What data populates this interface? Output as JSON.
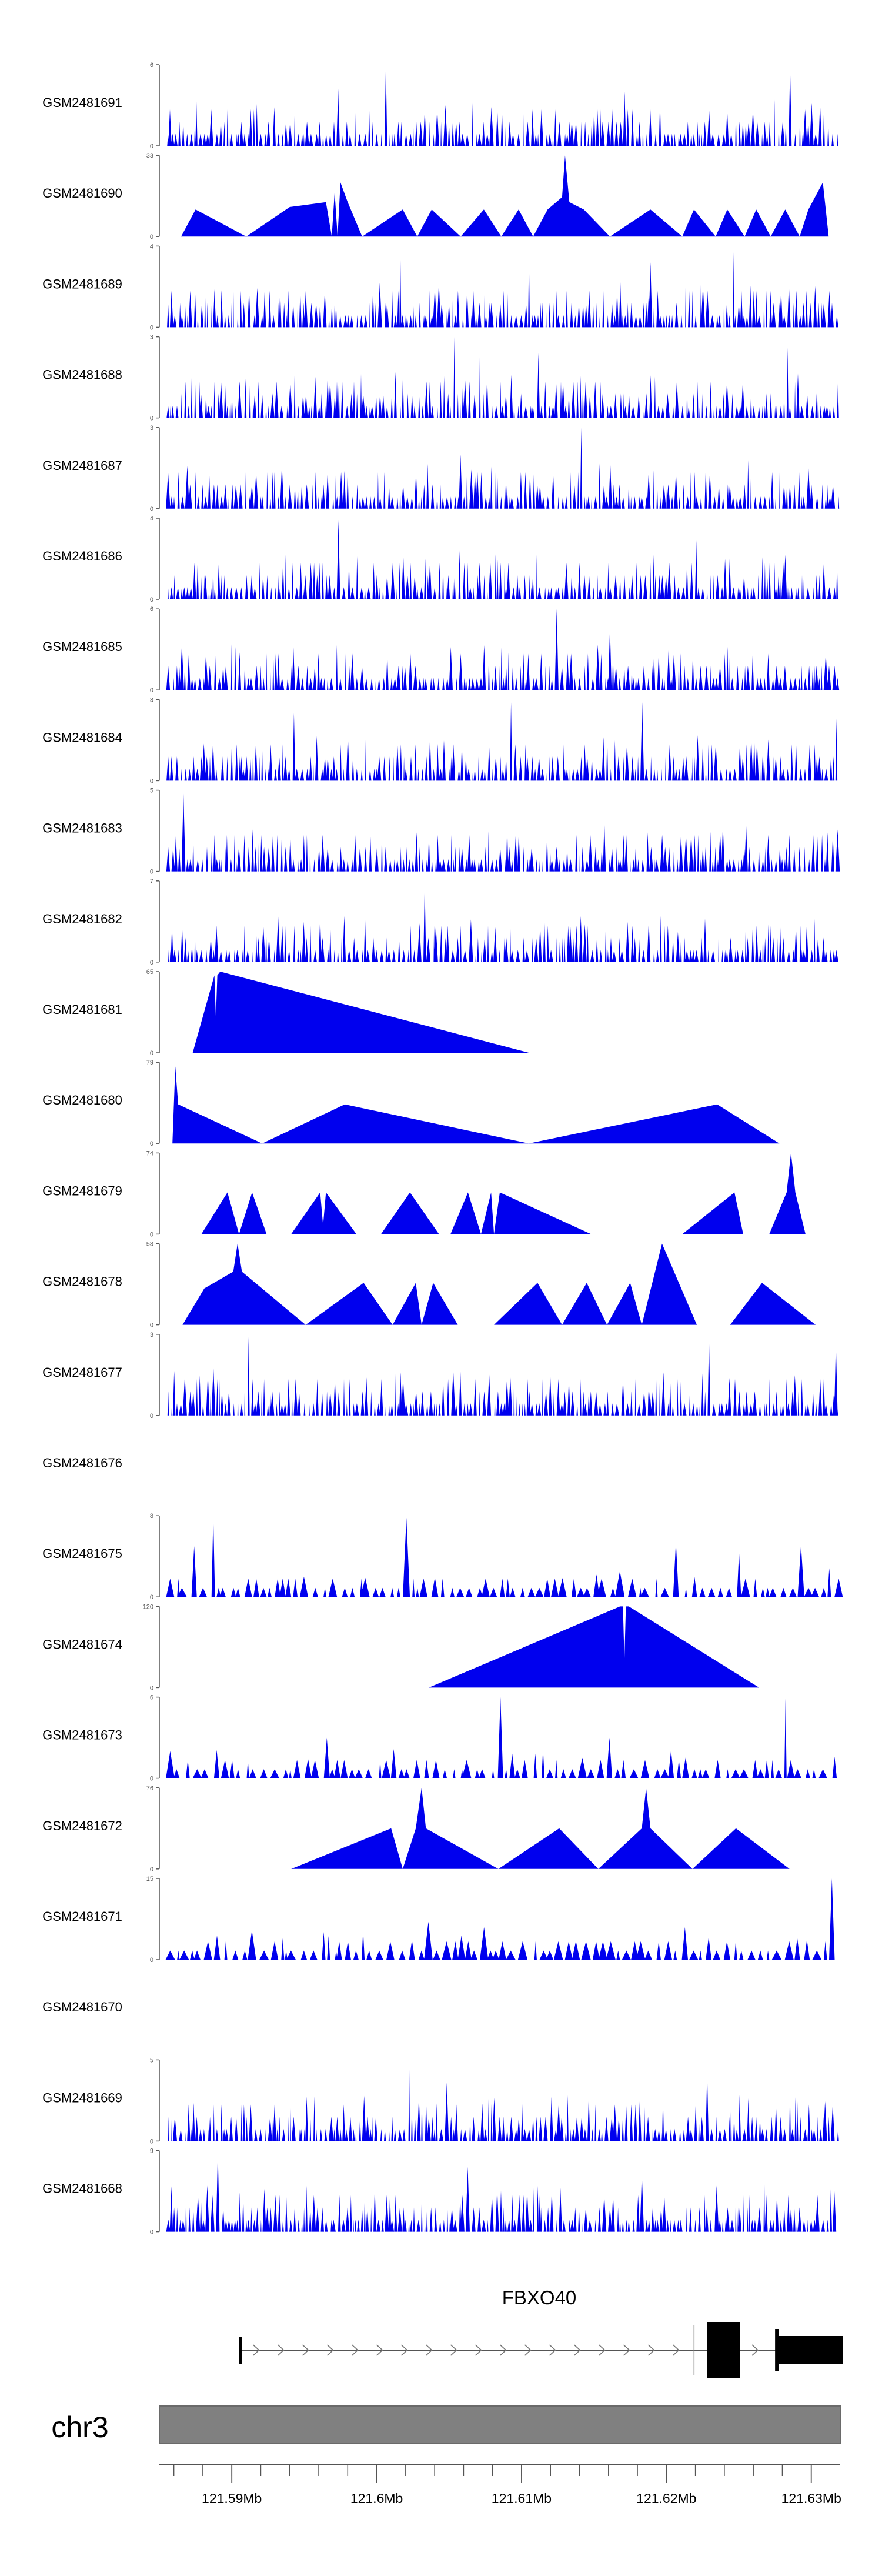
{
  "colors": {
    "track_fill": "#0000ee",
    "axis": "#555555",
    "gene": "#000000",
    "ideogram": "#808080",
    "ideogram_stroke": "#6a6a6a"
  },
  "chart_data": {
    "type": "area",
    "title": "",
    "chromosome": "chr3",
    "xlim": [
      121.585,
      121.632
    ],
    "x_ticks": [
      {
        "value": 121.59,
        "label": "121.59Mb"
      },
      {
        "value": 121.6,
        "label": "121.6Mb"
      },
      {
        "value": 121.61,
        "label": "121.61Mb"
      },
      {
        "value": 121.62,
        "label": "121.62Mb"
      },
      {
        "value": 121.63,
        "label": "121.63Mb"
      }
    ],
    "tracks": [
      {
        "name": "GSM2481691",
        "ymax": 6,
        "ymax_label": "6",
        "ymin_label": "0",
        "pattern": "dense",
        "seed": 11,
        "peaks": [
          [
            121.6006,
            6.0
          ],
          [
            121.6285,
            5.9
          ],
          [
            121.5972,
            4.2
          ],
          [
            121.6171,
            4.0
          ]
        ]
      },
      {
        "name": "GSM2481690",
        "ymax": 33,
        "ymax_label": "33",
        "ymin_label": "0",
        "pattern": "sparse",
        "points": [
          [
            121.5865,
            0
          ],
          [
            121.5875,
            11
          ],
          [
            121.591,
            0
          ],
          [
            121.594,
            12
          ],
          [
            121.5965,
            14
          ],
          [
            121.5969,
            0
          ],
          [
            121.5971,
            18
          ],
          [
            121.5973,
            0
          ],
          [
            121.5975,
            22
          ],
          [
            121.598,
            14
          ],
          [
            121.599,
            0
          ],
          [
            121.6018,
            11
          ],
          [
            121.6028,
            0
          ],
          [
            121.6038,
            11
          ],
          [
            121.6058,
            0
          ],
          [
            121.6074,
            11
          ],
          [
            121.6086,
            0
          ],
          [
            121.6098,
            11
          ],
          [
            121.6108,
            0
          ],
          [
            121.6118,
            11
          ],
          [
            121.6128,
            16
          ],
          [
            121.613,
            33
          ],
          [
            121.6133,
            14
          ],
          [
            121.6143,
            11
          ],
          [
            121.6161,
            0
          ],
          [
            121.6189,
            11
          ],
          [
            121.6211,
            0
          ],
          [
            121.6219,
            11
          ],
          [
            121.6234,
            0
          ],
          [
            121.6242,
            11
          ],
          [
            121.6254,
            0
          ],
          [
            121.6262,
            11
          ],
          [
            121.6272,
            0
          ],
          [
            121.6282,
            11
          ],
          [
            121.6292,
            0
          ],
          [
            121.6298,
            11
          ],
          [
            121.6308,
            22
          ],
          [
            121.6312,
            0
          ]
        ]
      },
      {
        "name": "GSM2481689",
        "ymax": 4,
        "ymax_label": "4",
        "ymin_label": "0",
        "pattern": "dense",
        "seed": 23,
        "peaks": [
          [
            121.6016,
            3.8
          ],
          [
            121.6105,
            3.6
          ],
          [
            121.6245,
            3.7
          ],
          [
            121.6189,
            3.2
          ]
        ]
      },
      {
        "name": "GSM2481688",
        "ymax": 3,
        "ymax_label": "3",
        "ymin_label": "0",
        "pattern": "dense",
        "seed": 37,
        "peaks": [
          [
            121.6052,
            3.0
          ],
          [
            121.6071,
            2.7
          ],
          [
            121.6283,
            2.6
          ],
          [
            121.6112,
            2.4
          ]
        ]
      },
      {
        "name": "GSM2481687",
        "ymax": 3,
        "ymax_label": "3",
        "ymin_label": "0",
        "pattern": "dense",
        "seed": 41,
        "peaks": [
          [
            121.6141,
            3.0
          ],
          [
            121.6058,
            2.0
          ],
          [
            121.6256,
            1.8
          ],
          [
            121.5936,
            1.6
          ]
        ]
      },
      {
        "name": "GSM2481686",
        "ymax": 4,
        "ymax_label": "4",
        "ymin_label": "0",
        "pattern": "dense",
        "seed": 53,
        "peaks": [
          [
            121.5974,
            3.9
          ],
          [
            121.6221,
            2.9
          ],
          [
            121.6058,
            2.4
          ],
          [
            121.6282,
            2.2
          ]
        ]
      },
      {
        "name": "GSM2481685",
        "ymax": 6,
        "ymax_label": "6",
        "ymin_label": "0",
        "pattern": "dense",
        "seed": 61,
        "peaks": [
          [
            121.6125,
            6.0
          ],
          [
            121.6161,
            4.6
          ],
          [
            121.5902,
            3.4
          ],
          [
            121.6242,
            3.2
          ]
        ]
      },
      {
        "name": "GSM2481684",
        "ymax": 3,
        "ymax_label": "3",
        "ymin_label": "0",
        "pattern": "dense",
        "seed": 71,
        "peaks": [
          [
            121.6093,
            2.9
          ],
          [
            121.6185,
            2.9
          ],
          [
            121.5941,
            2.5
          ],
          [
            121.6318,
            2.3
          ]
        ]
      },
      {
        "name": "GSM2481683",
        "ymax": 5,
        "ymax_label": "5",
        "ymin_label": "0",
        "pattern": "dense",
        "seed": 83,
        "peaks": [
          [
            121.5866,
            4.8
          ],
          [
            121.6003,
            2.8
          ],
          [
            121.6158,
            3.1
          ],
          [
            121.6255,
            2.9
          ]
        ]
      },
      {
        "name": "GSM2481682",
        "ymax": 7,
        "ymax_label": "7",
        "ymin_label": "0",
        "pattern": "dense",
        "seed": 97,
        "peaks": [
          [
            121.6033,
            6.8
          ],
          [
            121.6083,
            3.0
          ],
          [
            121.6209,
            2.6
          ],
          [
            121.5918,
            2.4
          ]
        ]
      },
      {
        "name": "GSM2481681",
        "ymax": 65,
        "ymax_label": "65",
        "ymin_label": "0",
        "pattern": "sparse",
        "points": [
          [
            121.5873,
            0
          ],
          [
            121.5888,
            62
          ],
          [
            121.5889,
            28
          ],
          [
            121.589,
            62
          ],
          [
            121.5892,
            65
          ],
          [
            121.6105,
            0
          ]
        ]
      },
      {
        "name": "GSM2481680",
        "ymax": 79,
        "ymax_label": "79",
        "ymin_label": "0",
        "pattern": "sparse",
        "points": [
          [
            121.5859,
            0
          ],
          [
            121.5861,
            75
          ],
          [
            121.5863,
            38
          ],
          [
            121.5921,
            0
          ],
          [
            121.5978,
            38
          ],
          [
            121.6105,
            0
          ],
          [
            121.6235,
            38
          ],
          [
            121.6278,
            0
          ]
        ]
      },
      {
        "name": "GSM2481679",
        "ymax": 74,
        "ymax_label": "74",
        "ymin_label": "0",
        "pattern": "sparse",
        "points": [
          [
            121.5879,
            0
          ],
          [
            121.5897,
            38
          ],
          [
            121.5905,
            0
          ],
          [
            121.5914,
            38
          ],
          [
            121.5924,
            0
          ],
          [
            121.5941,
            0
          ],
          [
            121.5961,
            38
          ],
          [
            121.5963,
            8
          ],
          [
            121.5965,
            38
          ],
          [
            121.5986,
            0
          ],
          [
            121.6003,
            0
          ],
          [
            121.6023,
            38
          ],
          [
            121.6043,
            0
          ],
          [
            121.6051,
            0
          ],
          [
            121.6063,
            38
          ],
          [
            121.6072,
            0
          ],
          [
            121.6079,
            38
          ],
          [
            121.6081,
            0
          ],
          [
            121.6085,
            38
          ],
          [
            121.6148,
            0
          ],
          [
            121.6211,
            0
          ],
          [
            121.6247,
            38
          ],
          [
            121.6253,
            0
          ],
          [
            121.6271,
            0
          ],
          [
            121.6283,
            38
          ],
          [
            121.6286,
            74
          ],
          [
            121.6289,
            38
          ],
          [
            121.6296,
            0
          ]
        ]
      },
      {
        "name": "GSM2481678",
        "ymax": 58,
        "ymax_label": "58",
        "ymin_label": "0",
        "pattern": "sparse",
        "points": [
          [
            121.5861,
            0
          ],
          [
            121.5866,
            0
          ],
          [
            121.5881,
            26
          ],
          [
            121.5901,
            38
          ],
          [
            121.5904,
            58
          ],
          [
            121.5907,
            38
          ],
          [
            121.5951,
            0
          ],
          [
            121.5991,
            30
          ],
          [
            121.6011,
            0
          ],
          [
            121.6027,
            30
          ],
          [
            121.6031,
            0
          ],
          [
            121.6039,
            30
          ],
          [
            121.6056,
            0
          ],
          [
            121.6081,
            0
          ],
          [
            121.6111,
            30
          ],
          [
            121.6128,
            0
          ],
          [
            121.6145,
            30
          ],
          [
            121.6159,
            0
          ],
          [
            121.6175,
            30
          ],
          [
            121.6183,
            0
          ],
          [
            121.6197,
            58
          ],
          [
            121.6221,
            0
          ],
          [
            121.6244,
            0
          ],
          [
            121.6266,
            30
          ],
          [
            121.6303,
            0
          ]
        ]
      },
      {
        "name": "GSM2481677",
        "ymax": 3,
        "ymax_label": "3",
        "ymin_label": "0",
        "pattern": "dense",
        "seed": 109,
        "peaks": [
          [
            121.5913,
            2.9
          ],
          [
            121.6231,
            2.9
          ],
          [
            121.6317,
            2.7
          ],
          [
            121.5886,
            1.8
          ]
        ]
      },
      {
        "name": "GSM2481676",
        "ymax": 0,
        "ymax_label": "",
        "ymin_label": "",
        "pattern": "empty"
      },
      {
        "name": "GSM2481675",
        "ymax": 8,
        "ymax_label": "8",
        "ymin_label": "0",
        "pattern": "sparse-ticks",
        "seed": 127,
        "peaks": [
          [
            121.5891,
            8.0
          ],
          [
            121.6021,
            7.8
          ],
          [
            121.6208,
            5.4
          ],
          [
            121.6294,
            5.1
          ],
          [
            121.6254,
            4.4
          ],
          [
            121.5876,
            5.0
          ]
        ]
      },
      {
        "name": "GSM2481674",
        "ymax": 120,
        "ymax_label": "120",
        "ymin_label": "0",
        "pattern": "sparse",
        "points": [
          [
            121.6036,
            0
          ],
          [
            121.6168,
            120
          ],
          [
            121.617,
            120
          ],
          [
            121.6171,
            40
          ],
          [
            121.6172,
            120
          ],
          [
            121.6174,
            120
          ],
          [
            121.6264,
            0
          ]
        ]
      },
      {
        "name": "GSM2481673",
        "ymax": 6,
        "ymax_label": "6",
        "ymin_label": "0",
        "pattern": "sparse-ticks",
        "seed": 139,
        "peaks": [
          [
            121.6087,
            6.0
          ],
          [
            121.6281,
            5.9
          ],
          [
            121.5968,
            3.0
          ],
          [
            121.6161,
            3.0
          ]
        ]
      },
      {
        "name": "GSM2481672",
        "ymax": 76,
        "ymax_label": "76",
        "ymin_label": "0",
        "pattern": "sparse",
        "points": [
          [
            121.5941,
            0
          ],
          [
            121.601,
            38
          ],
          [
            121.6018,
            0
          ],
          [
            121.6027,
            38
          ],
          [
            121.6031,
            76
          ],
          [
            121.6034,
            38
          ],
          [
            121.6084,
            0
          ],
          [
            121.6126,
            38
          ],
          [
            121.6153,
            0
          ],
          [
            121.6183,
            38
          ],
          [
            121.6186,
            76
          ],
          [
            121.6189,
            38
          ],
          [
            121.6218,
            0
          ],
          [
            121.6248,
            38
          ],
          [
            121.6285,
            0
          ]
        ]
      },
      {
        "name": "GSM2481671",
        "ymax": 15,
        "ymax_label": "15",
        "ymin_label": "0",
        "pattern": "sparse-ticks",
        "seed": 151,
        "peaks": [
          [
            121.6314,
            15.0
          ],
          [
            121.6037,
            7.0
          ],
          [
            121.6075,
            6.0
          ],
          [
            121.6208,
            6.0
          ]
        ]
      },
      {
        "name": "GSM2481670",
        "ymax": 0,
        "ymax_label": "",
        "ymin_label": "",
        "pattern": "empty"
      },
      {
        "name": "GSM2481669",
        "ymax": 5,
        "ymax_label": "5",
        "ymin_label": "0",
        "pattern": "dense",
        "seed": 163,
        "peaks": [
          [
            121.6024,
            4.8
          ],
          [
            121.6227,
            4.2
          ],
          [
            121.6047,
            3.6
          ],
          [
            121.6284,
            3.2
          ]
        ]
      },
      {
        "name": "GSM2481668",
        "ymax": 9,
        "ymax_label": "9",
        "ymin_label": "0",
        "pattern": "dense",
        "seed": 173,
        "peaks": [
          [
            121.5891,
            8.8
          ],
          [
            121.6063,
            7.2
          ],
          [
            121.6268,
            7.0
          ],
          [
            121.6184,
            6.4
          ]
        ]
      }
    ],
    "gene": {
      "name": "FBXO40",
      "strand": "+",
      "start": 121.5905,
      "end": 121.6322,
      "exons": [
        [
          121.5905,
          121.59055
        ],
        [
          121.6228,
          121.6251
        ],
        [
          121.6275,
          121.6322
        ]
      ]
    }
  }
}
